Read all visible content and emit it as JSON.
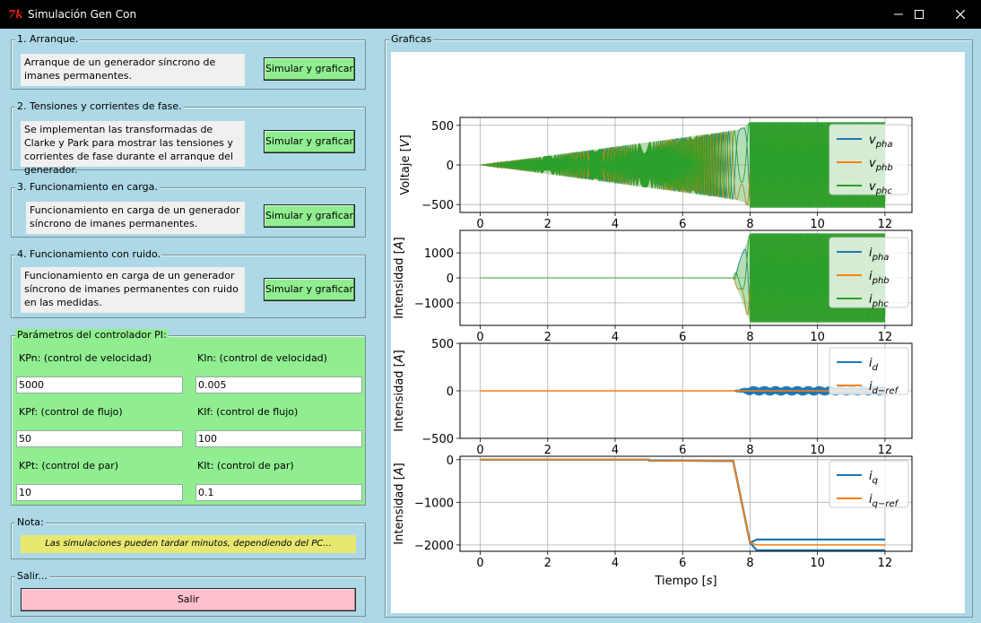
{
  "window": {
    "title": "Simulación Gen Con",
    "app_icon": "tk-feather-icon"
  },
  "sections": [
    {
      "title": "1. Arranque.",
      "description": "Arranque de un generador síncrono de imanes permanentes.",
      "button": "Simular y graficar"
    },
    {
      "title": "2. Tensiones y corrientes de fase.",
      "description": "Se implementan las transformadas de Clarke y Park para mostrar las tensiones y corrientes de fase durante el arranque del generador.",
      "button": "Simular y graficar"
    },
    {
      "title": "3. Funcionamiento en carga.",
      "description": "Funcionamiento en carga de un generador síncrono de imanes permanentes.",
      "button": "Simular y graficar"
    },
    {
      "title": "4. Funcionamiento con ruido.",
      "description": "Funcionamiento en carga de un generador síncrono de imanes permanentes con ruido en las medidas.",
      "button": "Simular y graficar"
    }
  ],
  "pi": {
    "title": "Parámetros del controlador PI:",
    "params": [
      {
        "label": "KPn: (control de velocidad)",
        "value": "5000"
      },
      {
        "label": "KIn: (control de velocidad)",
        "value": "0.005"
      },
      {
        "label": "KPf: (control de flujo)",
        "value": "50"
      },
      {
        "label": "KIf: (control de flujo)",
        "value": "100"
      },
      {
        "label": "KPt: (control de par)",
        "value": "10"
      },
      {
        "label": "KIt: (control de par)",
        "value": "0.1"
      }
    ]
  },
  "note": {
    "title": "Nota:",
    "text": "Las simulaciones pueden tardar minutos, dependiendo del PC..."
  },
  "exit": {
    "title": "Salir...",
    "button": "Salir"
  },
  "graphs": {
    "title": "Graficas"
  },
  "colors": {
    "blue": "#1f77b4",
    "orange": "#ff7f0e",
    "green": "#2ca02c",
    "panel": "#ADD8E6",
    "pi_bg": "#90EE90",
    "exit_bg": "#FFC0CB",
    "note_bg": "#e8e871"
  },
  "chart_data": [
    {
      "type": "line",
      "ylabel": "Voltaje [V]",
      "xlim": [
        -0.6,
        12.8
      ],
      "ylim": [
        -600,
        600
      ],
      "xticks": [
        "0",
        "2",
        "4",
        "6",
        "8",
        "10",
        "12"
      ],
      "yticks": [
        "−500",
        "0",
        "500"
      ],
      "legend": [
        {
          "name": "v",
          "sub": "pha"
        },
        {
          "name": "v",
          "sub": "phb"
        },
        {
          "name": "v",
          "sub": "phc"
        }
      ],
      "legend_position": "right",
      "grid": true,
      "envelope": {
        "t": [
          0,
          7.6,
          7.8,
          8.0,
          12.0
        ],
        "amplitude": [
          0,
          440,
          470,
          540,
          540
        ]
      }
    },
    {
      "type": "line",
      "ylabel": "Intensidad [A]",
      "xlim": [
        -0.6,
        12.8
      ],
      "ylim": [
        -1900,
        1900
      ],
      "xticks": [
        "0",
        "2",
        "4",
        "6",
        "8",
        "10",
        "12"
      ],
      "yticks": [
        "−1000",
        "0",
        "1000"
      ],
      "legend": [
        {
          "name": "i",
          "sub": "pha"
        },
        {
          "name": "i",
          "sub": "phb"
        },
        {
          "name": "i",
          "sub": "phc"
        }
      ],
      "legend_position": "right",
      "grid": true,
      "envelope": {
        "t": [
          0,
          7.5,
          8.0,
          12.0
        ],
        "amplitude": [
          0,
          0,
          1780,
          1780
        ]
      }
    },
    {
      "type": "line",
      "ylabel": "Intensidad [A]",
      "xlim": [
        -0.6,
        12.8
      ],
      "ylim": [
        -500,
        500
      ],
      "xticks": [
        "0",
        "2",
        "4",
        "6",
        "8",
        "10",
        "12"
      ],
      "yticks": [
        "−500",
        "0",
        "500"
      ],
      "legend": [
        {
          "name": "i",
          "sub": "d"
        },
        {
          "name": "i",
          "sub": "d−ref"
        }
      ],
      "legend_position": "top-right",
      "grid": true,
      "series": [
        {
          "name": "i_d",
          "x": [
            0,
            7.5,
            8.0,
            12.0
          ],
          "y": [
            0,
            0,
            0,
            0
          ],
          "noise": [
            0,
            0,
            50,
            50
          ]
        },
        {
          "name": "i_d-ref",
          "x": [
            0,
            12.0
          ],
          "y": [
            0,
            0
          ]
        }
      ]
    },
    {
      "type": "line",
      "ylabel": "Intensidad [A]",
      "xlabel": "Tiempo [s]",
      "xlim": [
        -0.6,
        12.8
      ],
      "ylim": [
        -2150,
        80
      ],
      "xticks": [
        "0",
        "2",
        "4",
        "6",
        "8",
        "10",
        "12"
      ],
      "yticks": [
        "−2000",
        "−1000",
        "0"
      ],
      "legend": [
        {
          "name": "i",
          "sub": "q"
        },
        {
          "name": "i",
          "sub": "q−ref"
        }
      ],
      "legend_position": "top-right",
      "grid": true,
      "series": [
        {
          "name": "i_q",
          "x": [
            0,
            5.0,
            5.0,
            7.5,
            8.0,
            8.2,
            12.0
          ],
          "y": [
            0,
            0,
            -20,
            -30,
            -1950,
            -2000,
            -2000
          ]
        },
        {
          "name": "i_q-ref",
          "x": [
            0,
            5.0,
            5.0,
            7.5,
            8.0,
            8.2,
            12.0
          ],
          "y": [
            0,
            0,
            -20,
            -30,
            -1950,
            -2000,
            -2000
          ]
        }
      ]
    }
  ]
}
